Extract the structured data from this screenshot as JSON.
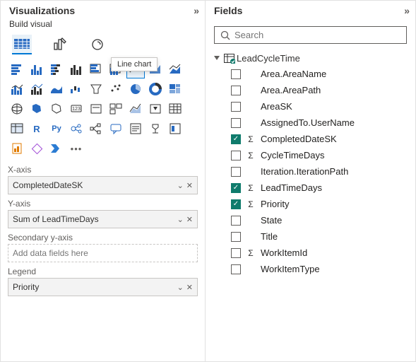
{
  "viz": {
    "title": "Visualizations",
    "subtitle": "Build visual",
    "tooltip": "Line chart",
    "wells": [
      {
        "label": "X-axis",
        "value": "CompletedDateSK",
        "empty": false
      },
      {
        "label": "Y-axis",
        "value": "Sum of LeadTimeDays",
        "empty": false
      },
      {
        "label": "Secondary y-axis",
        "value": "Add data fields here",
        "empty": true
      },
      {
        "label": "Legend",
        "value": "Priority",
        "empty": false
      }
    ],
    "icons": [
      "stacked-bar",
      "stacked-col",
      "clustered-bar",
      "clustered-col",
      "100-bar",
      "100-col",
      "line",
      "area",
      "stacked-area",
      "line-stacked",
      "line-clustered",
      "ribbon",
      "waterfall",
      "funnel",
      "scatter",
      "pie",
      "donut",
      "treemap",
      "map",
      "filled-map",
      "shape-map",
      "gauge",
      "card",
      "multi-card",
      "kpi",
      "slicer",
      "table",
      "matrix",
      "r",
      "py",
      "key-influencer",
      "decomp",
      "qa",
      "narrative",
      "goal",
      "scorecard",
      "paginated",
      "power-apps",
      "power-automate",
      "more"
    ],
    "selected_icon_index": 6
  },
  "fields": {
    "title": "Fields",
    "search_placeholder": "Search",
    "table": "LeadCycleTime",
    "items": [
      {
        "label": "Area.AreaName",
        "checked": false,
        "sigma": false
      },
      {
        "label": "Area.AreaPath",
        "checked": false,
        "sigma": false
      },
      {
        "label": "AreaSK",
        "checked": false,
        "sigma": false
      },
      {
        "label": "AssignedTo.UserName",
        "checked": false,
        "sigma": false
      },
      {
        "label": "CompletedDateSK",
        "checked": true,
        "sigma": true
      },
      {
        "label": "CycleTimeDays",
        "checked": false,
        "sigma": true
      },
      {
        "label": "Iteration.IterationPath",
        "checked": false,
        "sigma": false
      },
      {
        "label": "LeadTimeDays",
        "checked": true,
        "sigma": true
      },
      {
        "label": "Priority",
        "checked": true,
        "sigma": true
      },
      {
        "label": "State",
        "checked": false,
        "sigma": false
      },
      {
        "label": "Title",
        "checked": false,
        "sigma": false
      },
      {
        "label": "WorkItemId",
        "checked": false,
        "sigma": true
      },
      {
        "label": "WorkItemType",
        "checked": false,
        "sigma": false
      }
    ]
  },
  "colors": {
    "accent": "#0078d4",
    "teal_check": "#0f7b6c",
    "icon_blue": "#276ac1",
    "icon_dark": "#323232"
  }
}
